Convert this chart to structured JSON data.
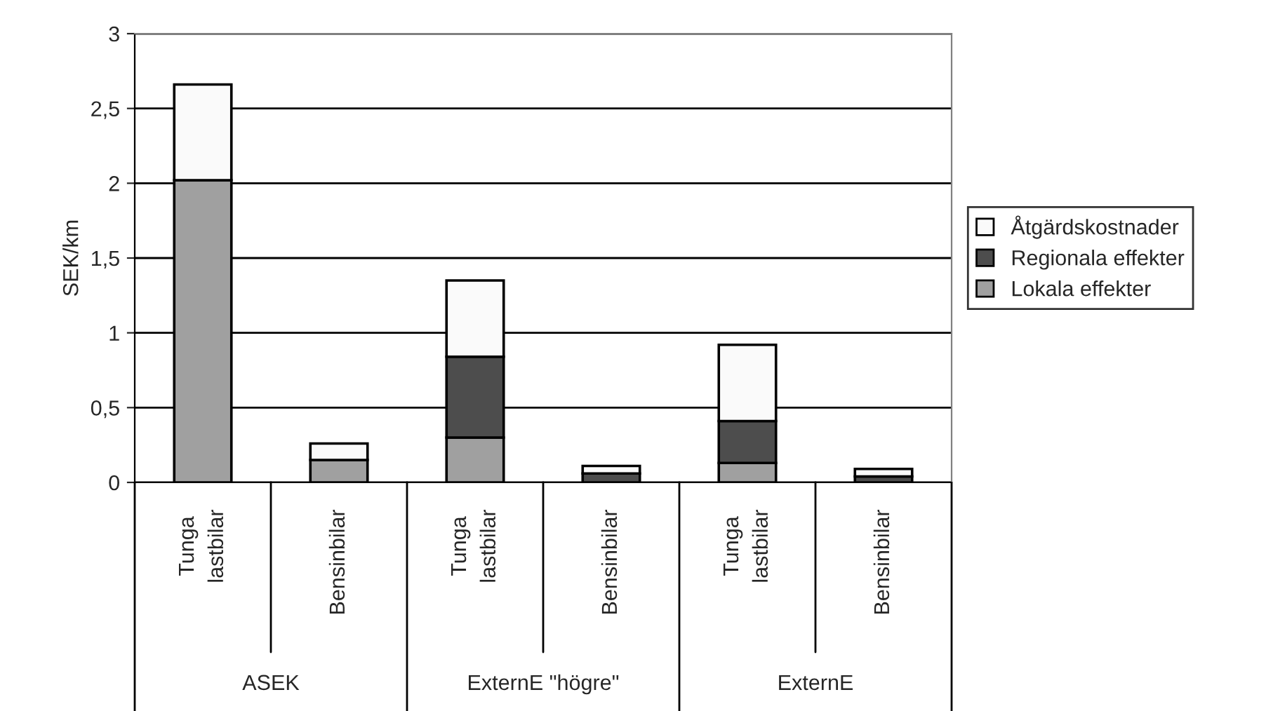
{
  "chart_data": {
    "type": "bar",
    "stacked": true,
    "ylabel": "SEK/km",
    "categories": [
      "Tunga\nlastbilar",
      "Bensinbilar",
      "Tunga\nlastbilar",
      "Bensinbilar",
      "Tunga\nlastbilar",
      "Bensinbilar"
    ],
    "annotations": [
      "ASEK",
      "ExternE \"högre\"",
      "ExternE"
    ],
    "series": [
      {
        "name": "Lokala effekter",
        "color": "#a0a0a0",
        "values": [
          2.02,
          0.15,
          0.3,
          null,
          0.13,
          null
        ]
      },
      {
        "name": "Regionala effekter",
        "color": "#4d4d4d",
        "values": [
          null,
          null,
          0.54,
          0.06,
          0.28,
          0.04
        ]
      },
      {
        "name": "Åtgärdskostnader",
        "color": "#fafafa",
        "values": [
          0.64,
          0.11,
          0.51,
          0.05,
          0.51,
          0.05
        ]
      }
    ],
    "ylim": [
      0,
      3
    ],
    "yticks": [
      0,
      {
        "value": 0.5,
        "label": "0,5"
      },
      1,
      {
        "value": 1.5,
        "label": "1,5"
      },
      2,
      {
        "value": 2.5,
        "label": "2,5"
      },
      3
    ],
    "grid": "y",
    "legend": "right"
  }
}
